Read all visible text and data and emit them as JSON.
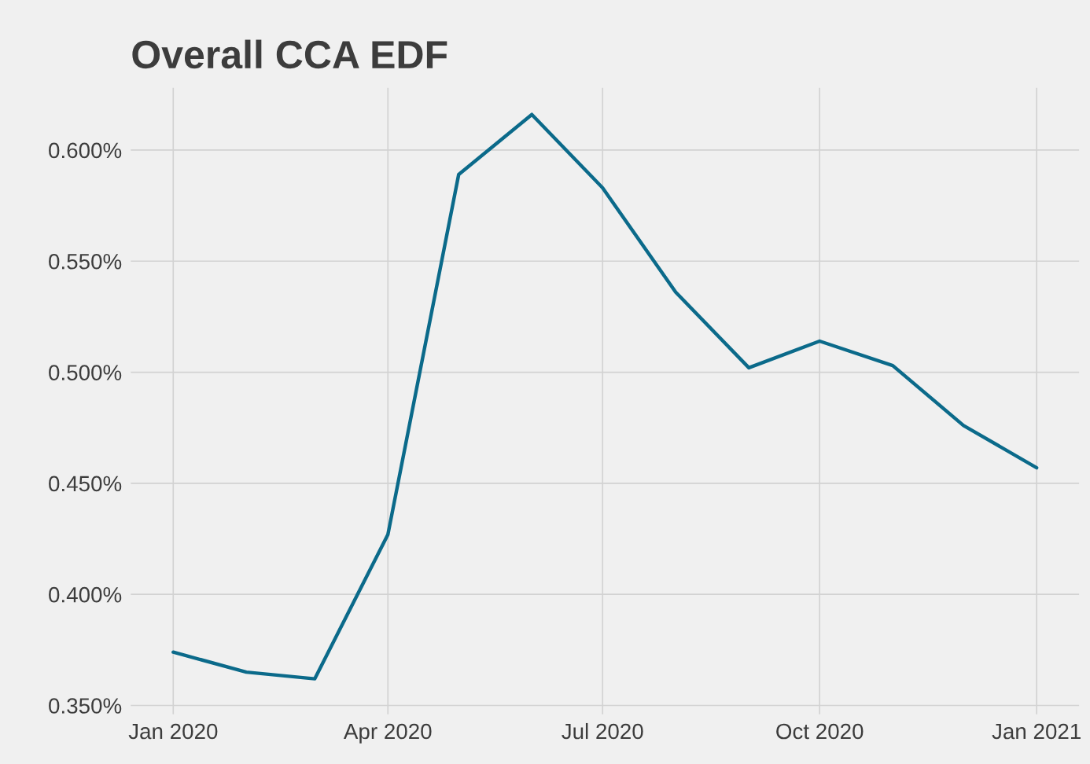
{
  "chart_data": {
    "type": "line",
    "title": "Overall CCA EDF",
    "x": [
      "2020-01",
      "2020-02",
      "2020-03",
      "2020-04",
      "2020-05",
      "2020-06",
      "2020-07",
      "2020-08",
      "2020-09",
      "2020-10",
      "2020-11",
      "2020-12",
      "2021-01"
    ],
    "series": [
      {
        "color": "#0b6a8a",
        "values": [
          0.374,
          0.365,
          0.362,
          0.427,
          0.589,
          0.616,
          0.583,
          0.536,
          0.502,
          0.514,
          0.503,
          0.476,
          0.457
        ]
      }
    ],
    "xlim": [
      "2019-12-14",
      "2021-01-19"
    ],
    "xticks": [
      {
        "value": "2020-01",
        "label": "Jan 2020"
      },
      {
        "value": "2020-04",
        "label": "Apr 2020"
      },
      {
        "value": "2020-07",
        "label": "Jul 2020"
      },
      {
        "value": "2020-10",
        "label": "Oct 2020"
      },
      {
        "value": "2021-01",
        "label": "Jan 2021"
      }
    ],
    "ylim": [
      0.346,
      0.628
    ],
    "yticks": [
      {
        "value": 0.35,
        "label": "0.350%"
      },
      {
        "value": 0.4,
        "label": "0.400%"
      },
      {
        "value": 0.45,
        "label": "0.450%"
      },
      {
        "value": 0.5,
        "label": "0.500%"
      },
      {
        "value": 0.55,
        "label": "0.550%"
      },
      {
        "value": 0.6,
        "label": "0.600%"
      }
    ],
    "grid": true,
    "legend": false,
    "marker": "none",
    "line_style": "solid"
  }
}
